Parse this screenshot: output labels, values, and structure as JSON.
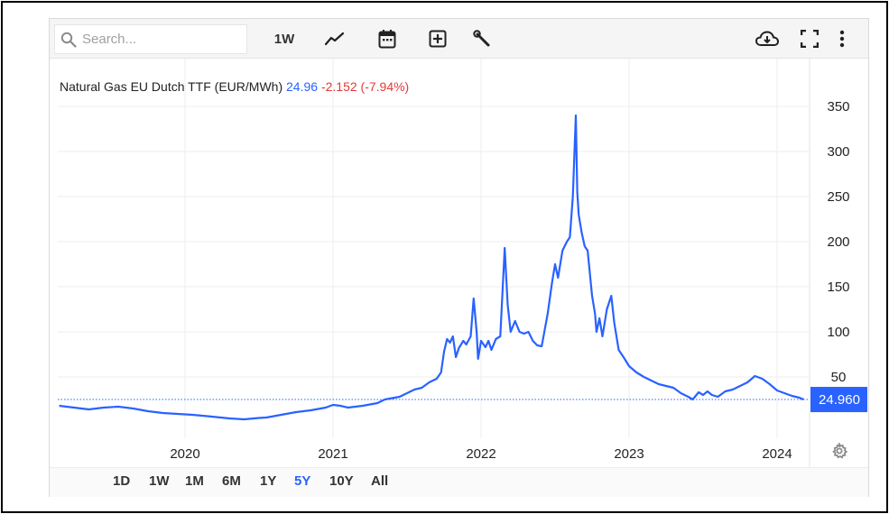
{
  "toolbar": {
    "search_placeholder": "Search...",
    "interval_label": "1W",
    "icons": [
      "search-icon",
      "line-chart-icon",
      "calendar-icon",
      "add-box-icon",
      "wrench-icon",
      "cloud-download-icon",
      "fullscreen-icon",
      "more-vert-icon"
    ]
  },
  "legend": {
    "name": "Natural Gas EU Dutch TTF (EUR/MWh)",
    "price": "24.96",
    "change": "-2.152 (-7.94%)"
  },
  "colors": {
    "line": "#2962ff",
    "negative": "#e53935",
    "grid": "#eeeeee",
    "badge_bg": "#2962ff"
  },
  "periods": [
    "1D",
    "1W",
    "1M",
    "6M",
    "1Y",
    "5Y",
    "10Y",
    "All"
  ],
  "active_period": "5Y",
  "chart_data": {
    "type": "line",
    "title": "Natural Gas EU Dutch TTF (EUR/MWh)",
    "last_value_label": "24.960",
    "x_ticks": [
      "2020",
      "2021",
      "2022",
      "2023",
      "2024"
    ],
    "y_ticks": [
      50,
      100,
      150,
      200,
      250,
      300,
      350
    ],
    "y_tick_labels": [
      "50",
      "100",
      "150",
      "200",
      "250",
      "300",
      "350"
    ],
    "ylim": [
      0,
      370
    ],
    "xlim": [
      2019.15,
      2024.3
    ],
    "grid": true,
    "series": [
      {
        "points": [
          [
            2019.15,
            18
          ],
          [
            2019.25,
            16
          ],
          [
            2019.35,
            14
          ],
          [
            2019.45,
            16
          ],
          [
            2019.55,
            17
          ],
          [
            2019.65,
            15
          ],
          [
            2019.75,
            12
          ],
          [
            2019.85,
            10
          ],
          [
            2019.95,
            9
          ],
          [
            2020.05,
            8
          ],
          [
            2020.15,
            6.5
          ],
          [
            2020.3,
            4
          ],
          [
            2020.4,
            3
          ],
          [
            2020.5,
            4.5
          ],
          [
            2020.55,
            5
          ],
          [
            2020.65,
            8
          ],
          [
            2020.75,
            11
          ],
          [
            2020.85,
            13
          ],
          [
            2020.95,
            16
          ],
          [
            2021.0,
            19
          ],
          [
            2021.05,
            18
          ],
          [
            2021.1,
            16
          ],
          [
            2021.2,
            18
          ],
          [
            2021.3,
            21
          ],
          [
            2021.35,
            25
          ],
          [
            2021.45,
            28
          ],
          [
            2021.55,
            36
          ],
          [
            2021.6,
            38
          ],
          [
            2021.65,
            44
          ],
          [
            2021.7,
            48
          ],
          [
            2021.73,
            55
          ],
          [
            2021.75,
            78
          ],
          [
            2021.77,
            92
          ],
          [
            2021.79,
            88
          ],
          [
            2021.81,
            95
          ],
          [
            2021.83,
            72
          ],
          [
            2021.85,
            82
          ],
          [
            2021.88,
            90
          ],
          [
            2021.9,
            86
          ],
          [
            2021.93,
            95
          ],
          [
            2021.95,
            137
          ],
          [
            2021.97,
            100
          ],
          [
            2021.98,
            70
          ],
          [
            2022.0,
            90
          ],
          [
            2022.03,
            83
          ],
          [
            2022.05,
            90
          ],
          [
            2022.07,
            80
          ],
          [
            2022.1,
            92
          ],
          [
            2022.13,
            95
          ],
          [
            2022.16,
            193
          ],
          [
            2022.18,
            130
          ],
          [
            2022.2,
            100
          ],
          [
            2022.23,
            112
          ],
          [
            2022.26,
            100
          ],
          [
            2022.29,
            98
          ],
          [
            2022.32,
            100
          ],
          [
            2022.35,
            90
          ],
          [
            2022.38,
            85
          ],
          [
            2022.41,
            84
          ],
          [
            2022.45,
            120
          ],
          [
            2022.48,
            155
          ],
          [
            2022.5,
            175
          ],
          [
            2022.52,
            160
          ],
          [
            2022.55,
            190
          ],
          [
            2022.58,
            200
          ],
          [
            2022.6,
            205
          ],
          [
            2022.62,
            250
          ],
          [
            2022.64,
            340
          ],
          [
            2022.65,
            255
          ],
          [
            2022.66,
            230
          ],
          [
            2022.68,
            210
          ],
          [
            2022.7,
            195
          ],
          [
            2022.72,
            190
          ],
          [
            2022.75,
            140
          ],
          [
            2022.77,
            120
          ],
          [
            2022.78,
            100
          ],
          [
            2022.8,
            115
          ],
          [
            2022.82,
            95
          ],
          [
            2022.85,
            125
          ],
          [
            2022.88,
            140
          ],
          [
            2022.9,
            110
          ],
          [
            2022.93,
            80
          ],
          [
            2022.97,
            70
          ],
          [
            2023.0,
            62
          ],
          [
            2023.05,
            55
          ],
          [
            2023.1,
            50
          ],
          [
            2023.15,
            46
          ],
          [
            2023.2,
            42
          ],
          [
            2023.25,
            40
          ],
          [
            2023.3,
            38
          ],
          [
            2023.35,
            32
          ],
          [
            2023.4,
            28
          ],
          [
            2023.43,
            25
          ],
          [
            2023.47,
            33
          ],
          [
            2023.5,
            30
          ],
          [
            2023.53,
            34
          ],
          [
            2023.56,
            30
          ],
          [
            2023.6,
            28
          ],
          [
            2023.65,
            34
          ],
          [
            2023.7,
            36
          ],
          [
            2023.75,
            40
          ],
          [
            2023.8,
            44
          ],
          [
            2023.85,
            51
          ],
          [
            2023.9,
            48
          ],
          [
            2023.95,
            42
          ],
          [
            2024.0,
            35
          ],
          [
            2024.05,
            32
          ],
          [
            2024.1,
            29
          ],
          [
            2024.15,
            27
          ],
          [
            2024.18,
            25
          ]
        ]
      }
    ]
  }
}
